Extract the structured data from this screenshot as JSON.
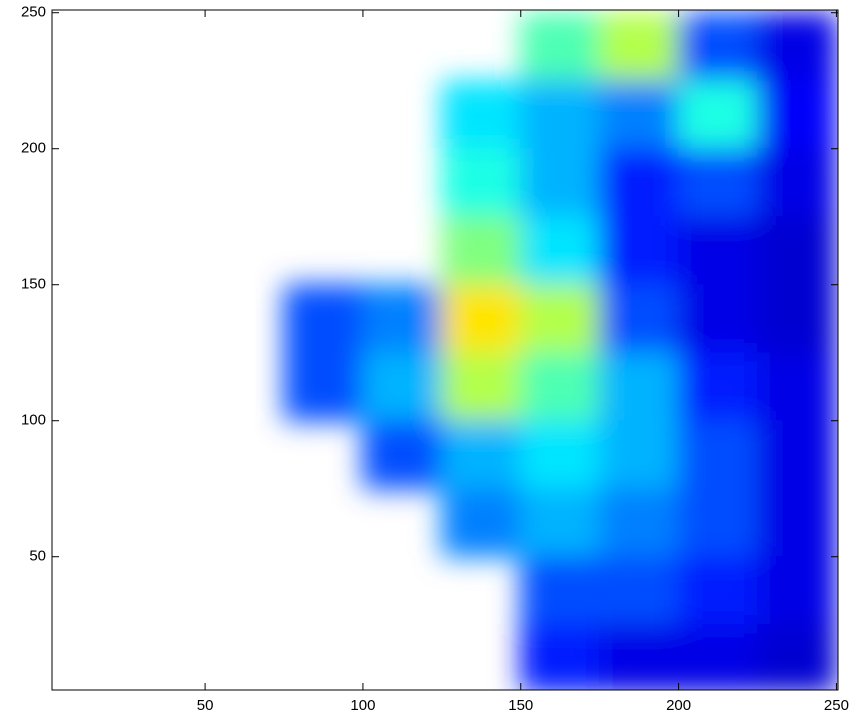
{
  "chart_data": {
    "type": "heatmap",
    "colormap": "jet",
    "clim": [
      0,
      100
    ],
    "xlim": [
      1.5,
      250.5
    ],
    "ylim": [
      1,
      251
    ],
    "xticks": [
      50,
      100,
      150,
      200,
      250
    ],
    "yticks": [
      50,
      100,
      150,
      200,
      250
    ],
    "x_edges": [
      0,
      25,
      50,
      75,
      100,
      125,
      150,
      175,
      200,
      225,
      250
    ],
    "y_edges": [
      250,
      225,
      200,
      175,
      150,
      125,
      100,
      75,
      50,
      25,
      0
    ],
    "z": [
      [
        null,
        null,
        null,
        null,
        null,
        null,
        45,
        55,
        20,
        10
      ],
      [
        null,
        null,
        null,
        null,
        null,
        35,
        30,
        25,
        40,
        12
      ],
      [
        null,
        null,
        null,
        null,
        null,
        40,
        30,
        15,
        20,
        10
      ],
      [
        null,
        null,
        null,
        null,
        null,
        50,
        35,
        15,
        10,
        8
      ],
      [
        null,
        null,
        null,
        20,
        25,
        65,
        55,
        20,
        10,
        8
      ],
      [
        null,
        null,
        null,
        20,
        30,
        55,
        45,
        30,
        15,
        10
      ],
      [
        null,
        null,
        null,
        null,
        20,
        30,
        35,
        30,
        20,
        10
      ],
      [
        null,
        null,
        null,
        null,
        null,
        25,
        30,
        25,
        20,
        10
      ],
      [
        null,
        null,
        null,
        null,
        null,
        null,
        20,
        20,
        15,
        10
      ],
      [
        null,
        null,
        null,
        null,
        null,
        null,
        15,
        10,
        10,
        8
      ]
    ]
  }
}
